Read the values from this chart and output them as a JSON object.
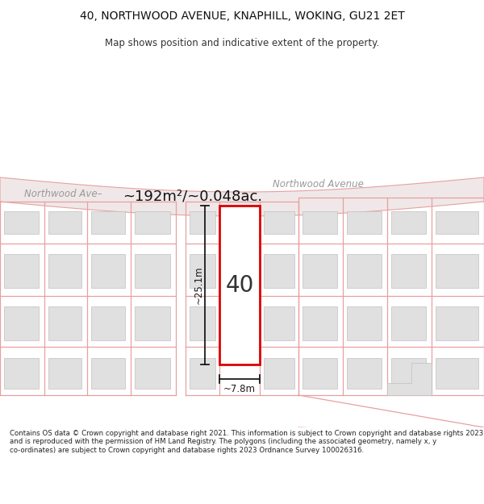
{
  "title": "40, NORTHWOOD AVENUE, KNAPHILL, WOKING, GU21 2ET",
  "subtitle": "Map shows position and indicative extent of the property.",
  "footer": "Contains OS data © Crown copyright and database right 2021. This information is subject to Crown copyright and database rights 2023 and is reproduced with the permission of HM Land Registry. The polygons (including the associated geometry, namely x, y co-ordinates) are subject to Crown copyright and database rights 2023 Ordnance Survey 100026316.",
  "area_label": "~192m²/~0.048ac.",
  "width_label": "~7.8m",
  "height_label": "~25.1m",
  "property_number": "40",
  "bg_color": "#ffffff",
  "map_bg": "#ffffff",
  "plot_line_color": "#e8a0a0",
  "highlight_color": "#dd0000",
  "building_fill": "#e0e0e0",
  "building_edge": "#c0c0c0",
  "dim_line_color": "#1a1a1a",
  "road_label_color": "#999999",
  "road_fill": "#f0e8e8",
  "title_fontsize": 10,
  "subtitle_fontsize": 8.5,
  "footer_fontsize": 6.2,
  "area_fontsize": 13,
  "prop_label_fontsize": 20,
  "dim_fontsize": 8.5
}
